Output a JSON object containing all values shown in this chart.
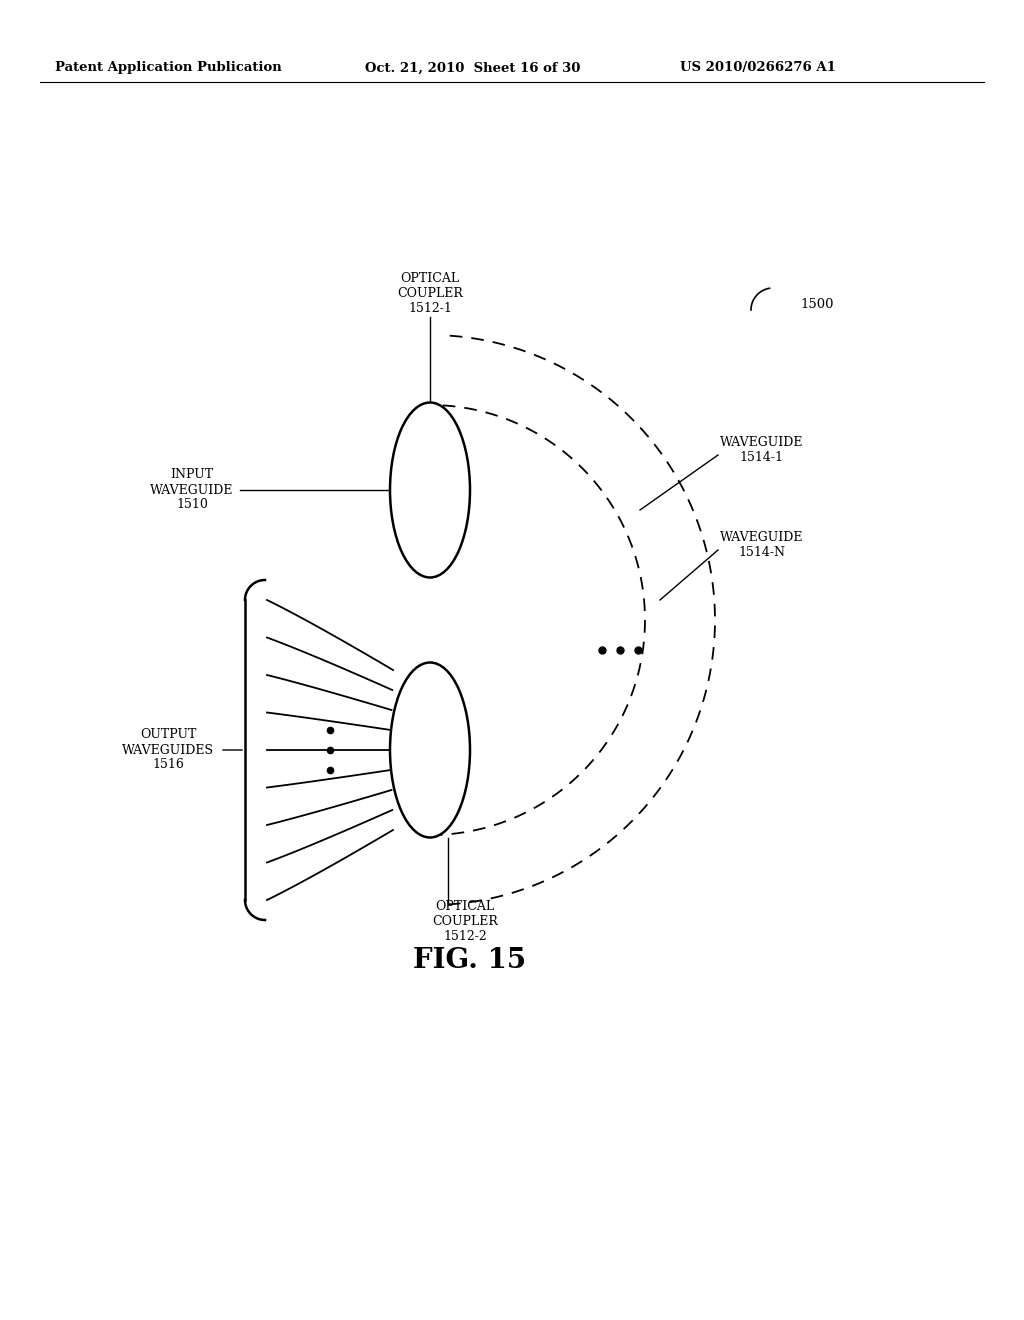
{
  "bg_color": "#ffffff",
  "header_left": "Patent Application Publication",
  "header_mid": "Oct. 21, 2010  Sheet 16 of 30",
  "header_right": "US 2010/0266276 A1",
  "fig_label": "FIG. 15",
  "label_1500": "1500",
  "text_color": "#000000",
  "line_color": "#000000"
}
